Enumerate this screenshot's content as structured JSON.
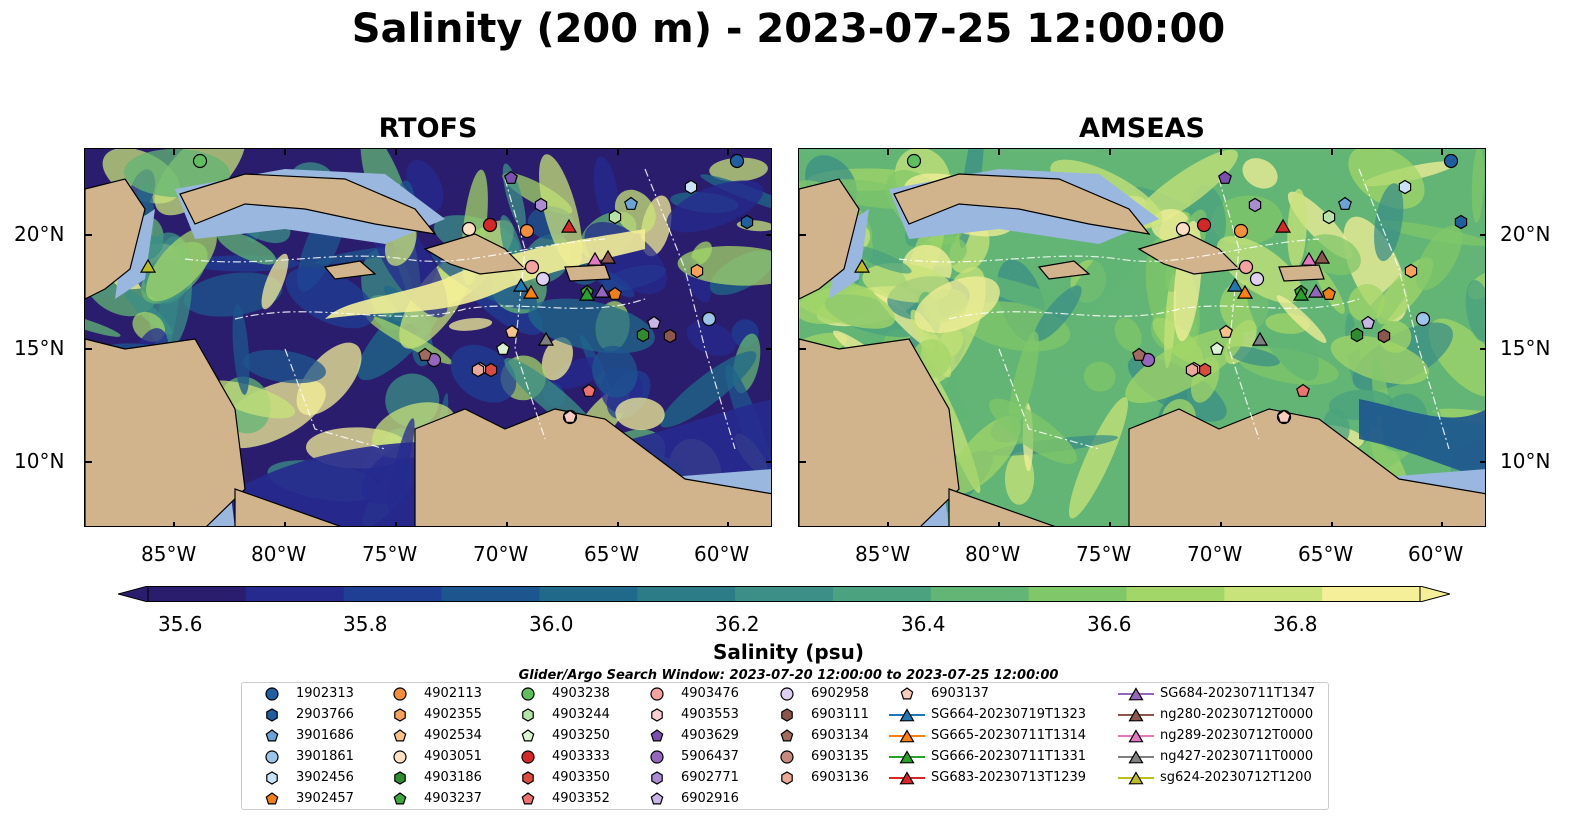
{
  "figure": {
    "title": "Salinity (200 m) - 2023-07-25 12:00:00",
    "panels": [
      {
        "title": "RTOFS"
      },
      {
        "title": "AMSEAS"
      }
    ],
    "lat_ticks": [
      "20°N",
      "15°N",
      "10°N"
    ],
    "lon_ticks": [
      "85°W",
      "80°W",
      "75°W",
      "70°W",
      "65°W",
      "60°W"
    ],
    "colorbar": {
      "label": "Salinity (psu)",
      "ticks": [
        "35.6",
        "35.8",
        "36.0",
        "36.2",
        "36.4",
        "36.6",
        "36.8"
      ],
      "colors": [
        "#2b1d6e",
        "#262a8f",
        "#1f3f95",
        "#1d558f",
        "#20698a",
        "#2c7c88",
        "#3b8f86",
        "#4aa27f",
        "#62b574",
        "#80c76a",
        "#a3d668",
        "#c8e37a",
        "#f4ef98"
      ]
    },
    "search_window": "Glider/Argo Search Window: 2023-07-20 12:00:00 to 2023-07-25 12:00:00",
    "land_color": "#d2b48c",
    "shelf_color": "#9ab7e0"
  },
  "legend": [
    {
      "label": "1902313",
      "marker": "circle",
      "color": "#1f5fa0"
    },
    {
      "label": "2903766",
      "marker": "hexagon",
      "color": "#1f5fa0"
    },
    {
      "label": "3901686",
      "marker": "pentagon",
      "color": "#6aa3d6"
    },
    {
      "label": "3901861",
      "marker": "circle",
      "color": "#9cc5ea"
    },
    {
      "label": "3902456",
      "marker": "hexagon",
      "color": "#c9e2f5"
    },
    {
      "label": "3902457",
      "marker": "pentagon",
      "color": "#f07f16"
    },
    {
      "label": "4902113",
      "marker": "circle",
      "color": "#f58e3a"
    },
    {
      "label": "4902355",
      "marker": "hexagon",
      "color": "#f7a25a"
    },
    {
      "label": "4902534",
      "marker": "pentagon",
      "color": "#f8c28b"
    },
    {
      "label": "4903051",
      "marker": "circle",
      "color": "#fbe0c2"
    },
    {
      "label": "4903186",
      "marker": "hexagon",
      "color": "#2e8b2e"
    },
    {
      "label": "4903237",
      "marker": "pentagon",
      "color": "#3ea73e"
    },
    {
      "label": "4903238",
      "marker": "circle",
      "color": "#5fbe5f"
    },
    {
      "label": "4903244",
      "marker": "hexagon",
      "color": "#b6e3a8"
    },
    {
      "label": "4903250",
      "marker": "pentagon",
      "color": "#dcf3d2"
    },
    {
      "label": "4903333",
      "marker": "circle",
      "color": "#d62728"
    },
    {
      "label": "4903350",
      "marker": "hexagon",
      "color": "#dc4a3e"
    },
    {
      "label": "4903352",
      "marker": "pentagon",
      "color": "#f07270"
    },
    {
      "label": "4903476",
      "marker": "circle",
      "color": "#f4a3a1"
    },
    {
      "label": "4903553",
      "marker": "hexagon",
      "color": "#f9d0cf"
    },
    {
      "label": "4903629",
      "marker": "pentagon",
      "color": "#7b4fb0"
    },
    {
      "label": "5906437",
      "marker": "circle",
      "color": "#9467bd"
    },
    {
      "label": "6902771",
      "marker": "hexagon",
      "color": "#a98cd2"
    },
    {
      "label": "6902916",
      "marker": "pentagon",
      "color": "#c9b6e6"
    },
    {
      "label": "6902958",
      "marker": "circle",
      "color": "#ddd0f0"
    },
    {
      "label": "6903111",
      "marker": "hexagon",
      "color": "#8c564b"
    },
    {
      "label": "6903134",
      "marker": "pentagon",
      "color": "#a26b5f"
    },
    {
      "label": "6903135",
      "marker": "circle",
      "color": "#c48a7d"
    },
    {
      "label": "6903136",
      "marker": "hexagon",
      "color": "#e9a996"
    },
    {
      "label": "6903137",
      "marker": "pentagon",
      "color": "#f7cdbf"
    },
    {
      "label": "SG664-20230719T1323",
      "marker": "triangle",
      "color": "#1f77b4"
    },
    {
      "label": "SG665-20230711T1314",
      "marker": "triangle",
      "color": "#ff7f0e"
    },
    {
      "label": "SG666-20230711T1331",
      "marker": "triangle",
      "color": "#2ca02c"
    },
    {
      "label": "SG683-20230713T1239",
      "marker": "triangle",
      "color": "#d62728"
    },
    {
      "label": "SG684-20230711T1347",
      "marker": "triangle",
      "color": "#9467bd"
    },
    {
      "label": "ng280-20230712T0000",
      "marker": "triangle",
      "color": "#8c564b"
    },
    {
      "label": "ng289-20230712T0000",
      "marker": "triangle",
      "color": "#e377c2"
    },
    {
      "label": "ng427-20230711T0000",
      "marker": "triangle",
      "color": "#7f7f7f"
    },
    {
      "label": "sg624-20230712T1200",
      "marker": "triangle",
      "color": "#bcbd22"
    }
  ]
}
